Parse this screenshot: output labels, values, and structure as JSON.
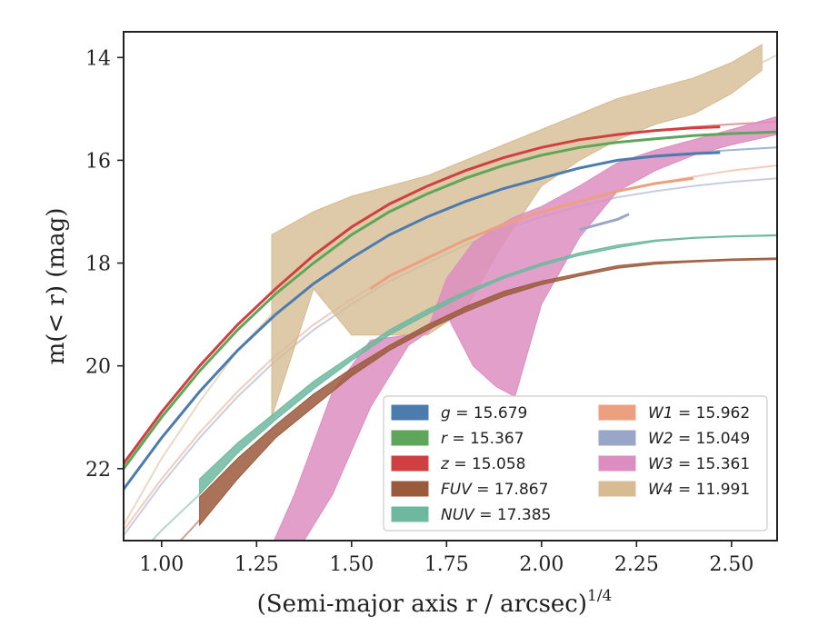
{
  "chart_data": {
    "type": "line",
    "xlabel": "(Semi-major axis r / arcsec)",
    "xlabel_sup": "1/4",
    "ylabel": "m(< r) (mag)",
    "xlim": [
      0.9,
      2.62
    ],
    "ylim": [
      23.4,
      13.5
    ],
    "y_inverted": true,
    "xticks": [
      1.0,
      1.25,
      1.5,
      1.75,
      2.0,
      2.25,
      2.5
    ],
    "xtick_labels": [
      "1.00",
      "1.25",
      "1.50",
      "1.75",
      "2.00",
      "2.25",
      "2.50"
    ],
    "yticks": [
      14,
      16,
      18,
      20,
      22
    ],
    "ytick_labels": [
      "14",
      "16",
      "18",
      "20",
      "22"
    ],
    "legend_position": "lower-right",
    "series": [
      {
        "band": "g",
        "value": "15.679",
        "color": "#4c7cad",
        "kind": "curve",
        "ext_x": [
          0.9,
          1.0,
          1.1,
          1.2,
          1.3,
          1.4,
          1.5,
          1.6,
          1.7,
          1.8,
          1.9,
          2.0,
          2.1,
          2.2,
          2.3,
          2.4,
          2.5,
          2.62
        ],
        "ext_y": [
          22.4,
          21.4,
          20.5,
          19.7,
          19.0,
          18.4,
          17.9,
          17.45,
          17.1,
          16.8,
          16.55,
          16.35,
          16.15,
          16.0,
          15.9,
          15.85,
          15.8,
          15.75
        ],
        "x": [
          0.9,
          1.0,
          1.1,
          1.2,
          1.3,
          1.4,
          1.5,
          1.6,
          1.7,
          1.8,
          1.9,
          2.0,
          2.1,
          2.2,
          2.3,
          2.4,
          2.47
        ],
        "y": [
          22.4,
          21.4,
          20.5,
          19.7,
          19.0,
          18.4,
          17.9,
          17.45,
          17.1,
          16.8,
          16.55,
          16.35,
          16.15,
          16.0,
          15.92,
          15.87,
          15.85
        ]
      },
      {
        "band": "r",
        "value": "15.367",
        "color": "#5fa55a",
        "kind": "curve",
        "ext_x": [
          0.9,
          1.0,
          1.1,
          1.2,
          1.3,
          1.4,
          1.5,
          1.6,
          1.7,
          1.8,
          1.9,
          2.0,
          2.1,
          2.2,
          2.3,
          2.4,
          2.5,
          2.62
        ],
        "ext_y": [
          22.0,
          21.0,
          20.1,
          19.3,
          18.6,
          18.0,
          17.45,
          17.0,
          16.65,
          16.35,
          16.1,
          15.9,
          15.75,
          15.65,
          15.58,
          15.52,
          15.48,
          15.45
        ],
        "x": [
          0.9,
          1.0,
          1.1,
          1.2,
          1.3,
          1.4,
          1.5,
          1.6,
          1.7,
          1.8,
          1.9,
          2.0,
          2.1,
          2.2,
          2.3,
          2.4,
          2.5,
          2.62
        ],
        "y": [
          22.0,
          21.0,
          20.1,
          19.3,
          18.6,
          18.0,
          17.45,
          17.0,
          16.65,
          16.35,
          16.1,
          15.9,
          15.75,
          15.65,
          15.58,
          15.52,
          15.48,
          15.45
        ]
      },
      {
        "band": "z",
        "value": "15.058",
        "color": "#d04040",
        "kind": "curve",
        "ext_x": [
          0.9,
          1.0,
          1.1,
          1.2,
          1.3,
          1.4,
          1.5,
          1.6,
          1.7,
          1.8,
          1.9,
          2.0,
          2.1,
          2.2,
          2.3,
          2.4,
          2.5,
          2.62
        ],
        "ext_y": [
          21.9,
          20.9,
          20.0,
          19.2,
          18.5,
          17.85,
          17.3,
          16.85,
          16.5,
          16.2,
          15.95,
          15.75,
          15.6,
          15.5,
          15.42,
          15.35,
          15.3,
          15.25
        ],
        "x": [
          0.9,
          1.0,
          1.1,
          1.2,
          1.3,
          1.4,
          1.5,
          1.6,
          1.7,
          1.8,
          1.9,
          2.0,
          2.1,
          2.2,
          2.3,
          2.4,
          2.47
        ],
        "y": [
          21.9,
          20.9,
          20.0,
          19.2,
          18.5,
          17.85,
          17.3,
          16.85,
          16.5,
          16.2,
          15.95,
          15.75,
          15.6,
          15.5,
          15.42,
          15.37,
          15.35
        ]
      },
      {
        "band": "FUV",
        "value": "17.867",
        "color": "#9b5a3c",
        "kind": "band",
        "ext_x": [
          0.9,
          1.0,
          1.1
        ],
        "ext_y": [
          24.6,
          23.8,
          23.0
        ],
        "x": [
          1.1,
          1.2,
          1.3,
          1.4,
          1.5,
          1.6,
          1.7,
          1.8,
          1.9,
          2.0,
          2.1,
          2.2,
          2.3,
          2.4,
          2.5,
          2.62
        ],
        "y_lo": [
          22.55,
          21.8,
          21.15,
          20.55,
          20.05,
          19.6,
          19.2,
          18.85,
          18.55,
          18.35,
          18.2,
          18.05,
          17.98,
          17.95,
          17.92,
          17.9
        ],
        "y_hi": [
          23.1,
          22.2,
          21.4,
          20.8,
          20.2,
          19.7,
          19.3,
          18.95,
          18.65,
          18.42,
          18.25,
          18.1,
          18.02,
          17.98,
          17.95,
          17.93
        ]
      },
      {
        "band": "NUV",
        "value": "17.385",
        "color": "#6fb8a0",
        "kind": "band",
        "ext_x": [
          0.9,
          1.0,
          1.1
        ],
        "ext_y": [
          24.0,
          23.2,
          22.5
        ],
        "x": [
          1.1,
          1.2,
          1.3,
          1.4,
          1.5,
          1.6,
          1.7,
          1.8,
          1.9,
          2.0,
          2.1,
          2.2,
          2.3,
          2.4,
          2.5,
          2.62
        ],
        "y_lo": [
          22.2,
          21.5,
          20.9,
          20.3,
          19.8,
          19.3,
          18.9,
          18.55,
          18.25,
          18.0,
          17.8,
          17.65,
          17.55,
          17.5,
          17.47,
          17.45
        ],
        "y_hi": [
          22.5,
          21.7,
          21.05,
          20.45,
          19.9,
          19.4,
          19.0,
          18.62,
          18.3,
          18.05,
          17.85,
          17.7,
          17.58,
          17.52,
          17.49,
          17.47
        ]
      },
      {
        "band": "W1",
        "value": "15.962",
        "color": "#eda07f",
        "kind": "curve",
        "ext_x": [
          0.9,
          1.0,
          1.1,
          1.2,
          1.3,
          1.4,
          1.5,
          1.6,
          1.7,
          1.8,
          1.9,
          2.0,
          2.1,
          2.2,
          2.3,
          2.4,
          2.5,
          2.62
        ],
        "ext_y": [
          23.2,
          22.2,
          21.3,
          20.5,
          19.8,
          19.2,
          18.7,
          18.25,
          17.9,
          17.55,
          17.25,
          17.0,
          16.8,
          16.6,
          16.45,
          16.32,
          16.2,
          16.1
        ],
        "x": [
          1.55,
          1.6,
          1.7,
          1.8,
          1.9,
          2.0,
          2.1,
          2.2,
          2.3,
          2.4
        ],
        "y": [
          18.5,
          18.25,
          17.9,
          17.55,
          17.25,
          17.0,
          16.8,
          16.6,
          16.45,
          16.35
        ]
      },
      {
        "band": "W2",
        "value": "15.049",
        "color": "#9aa6c8",
        "kind": "curve",
        "ext_x": [
          0.9,
          1.0,
          1.1,
          1.2,
          1.3,
          1.4,
          1.5,
          1.6,
          1.7,
          1.8,
          1.9,
          2.0,
          2.1,
          2.2,
          2.3,
          2.4,
          2.5,
          2.62
        ],
        "ext_y": [
          23.3,
          22.3,
          21.4,
          20.6,
          19.9,
          19.3,
          18.8,
          18.35,
          18.0,
          17.65,
          17.35,
          17.1,
          16.9,
          16.72,
          16.6,
          16.5,
          16.42,
          16.35
        ],
        "x": [
          2.1,
          2.15,
          2.2,
          2.23
        ],
        "y": [
          17.35,
          17.25,
          17.15,
          17.05
        ]
      },
      {
        "band": "W3",
        "value": "15.361",
        "color": "#dd8ec0",
        "kind": "band",
        "ext_x": [],
        "ext_y": [],
        "x": [
          1.29,
          1.35,
          1.45,
          1.55,
          1.65,
          1.7,
          1.75,
          1.82,
          1.88,
          1.93,
          2.0,
          2.1,
          2.2,
          2.3,
          2.4,
          2.5,
          2.62
        ],
        "y_lo": [
          23.5,
          22.5,
          20.5,
          19.5,
          19.4,
          19.3,
          18.3,
          17.6,
          17.3,
          17.1,
          16.9,
          16.5,
          16.05,
          15.8,
          15.6,
          15.4,
          15.15
        ],
        "y_hi": [
          23.5,
          23.7,
          22.5,
          20.8,
          19.6,
          19.35,
          19.0,
          20.0,
          20.4,
          20.6,
          18.8,
          17.5,
          16.6,
          16.2,
          15.9,
          15.7,
          15.5
        ]
      },
      {
        "band": "W4",
        "value": "11.991",
        "color": "#d6bb93",
        "kind": "band",
        "ext_x": [
          0.9,
          1.0,
          1.1,
          1.2,
          1.29
        ],
        "ext_y": [
          23.1,
          21.8,
          20.7,
          19.7,
          19.0
        ],
        "x": [
          1.29,
          1.4,
          1.5,
          1.6,
          1.7,
          1.8,
          1.9,
          2.0,
          2.1,
          2.2,
          2.3,
          2.4,
          2.5,
          2.58
        ],
        "y_lo": [
          17.45,
          17.0,
          16.7,
          16.5,
          16.3,
          16.0,
          15.7,
          15.4,
          15.1,
          14.8,
          14.6,
          14.4,
          14.1,
          13.75
        ],
        "y_hi": [
          21.0,
          18.5,
          19.4,
          19.4,
          19.4,
          18.9,
          17.6,
          16.5,
          16.0,
          15.6,
          15.3,
          15.1,
          14.7,
          14.25
        ],
        "ext2_x": [
          2.58,
          2.62
        ],
        "ext2_y": [
          14.1,
          13.95
        ]
      }
    ]
  }
}
